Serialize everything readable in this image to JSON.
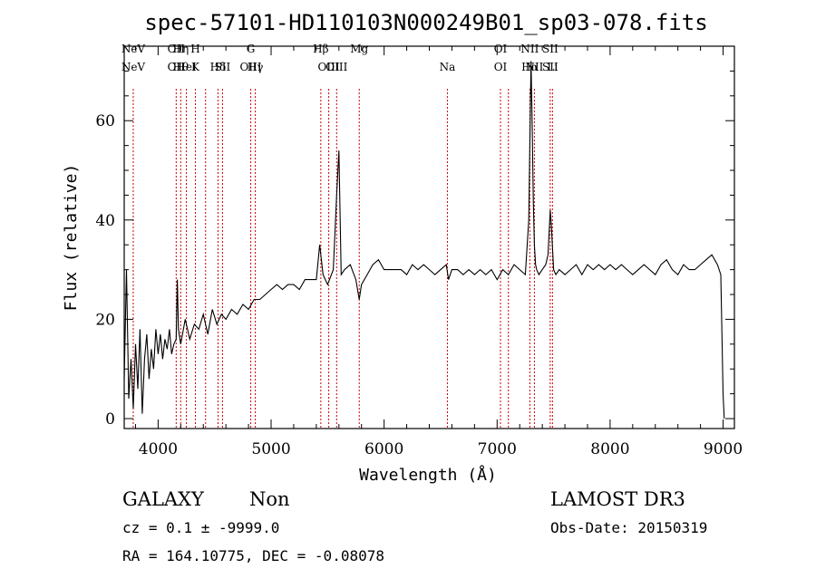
{
  "chart_data": {
    "type": "line",
    "title": "spec-57101-HD110103N000249B01_sp03-078.fits",
    "xlabel": "Wavelength (Å)",
    "ylabel": "Flux (relative)",
    "xlim": [
      3700,
      9100
    ],
    "ylim": [
      -2,
      75
    ],
    "xticks": [
      "4000",
      "5000",
      "6000",
      "7000",
      "8000",
      "9000"
    ],
    "yticks": [
      "0",
      "20",
      "40",
      "60"
    ],
    "series": [
      {
        "x": [
          3700,
          3720,
          3740,
          3760,
          3780,
          3800,
          3820,
          3840,
          3860,
          3880,
          3900,
          3920,
          3940,
          3960,
          3980,
          4000,
          4020,
          4040,
          4060,
          4080,
          4100,
          4120,
          4140,
          4160,
          4170,
          4180,
          4200,
          4240,
          4280,
          4320,
          4360,
          4400,
          4440,
          4480,
          4520,
          4560,
          4600,
          4650,
          4700,
          4750,
          4800,
          4850,
          4900,
          4950,
          5000,
          5050,
          5100,
          5150,
          5200,
          5250,
          5300,
          5350,
          5400,
          5430,
          5460,
          5500,
          5550,
          5580,
          5600,
          5620,
          5650,
          5700,
          5750,
          5780,
          5800,
          5850,
          5900,
          5950,
          6000,
          6050,
          6100,
          6150,
          6200,
          6250,
          6300,
          6350,
          6400,
          6450,
          6500,
          6550,
          6570,
          6600,
          6650,
          6700,
          6750,
          6800,
          6850,
          6900,
          6950,
          7000,
          7050,
          7100,
          7150,
          7200,
          7250,
          7280,
          7300,
          7310,
          7320,
          7330,
          7340,
          7350,
          7370,
          7400,
          7430,
          7450,
          7470,
          7480,
          7500,
          7520,
          7550,
          7600,
          7650,
          7700,
          7750,
          7800,
          7850,
          7900,
          7950,
          8000,
          8050,
          8100,
          8150,
          8200,
          8250,
          8300,
          8350,
          8400,
          8450,
          8500,
          8550,
          8600,
          8650,
          8700,
          8750,
          8800,
          8850,
          8900,
          8950,
          8980,
          9000,
          9010
        ],
        "y": [
          8,
          30,
          4,
          12,
          2,
          15,
          6,
          18,
          1,
          12,
          17,
          8,
          14,
          10,
          18,
          13,
          17,
          12,
          16,
          14,
          18,
          13,
          15,
          16,
          28,
          18,
          15,
          20,
          16,
          19,
          18,
          21,
          17,
          22,
          19,
          21,
          20,
          22,
          21,
          23,
          22,
          24,
          24,
          25,
          26,
          27,
          26,
          27,
          27,
          26,
          28,
          28,
          28,
          35,
          29,
          27,
          30,
          45,
          54,
          29,
          30,
          31,
          28,
          24,
          27,
          29,
          31,
          32,
          30,
          30,
          30,
          30,
          29,
          31,
          30,
          31,
          30,
          29,
          30,
          31,
          28,
          30,
          30,
          29,
          30,
          29,
          30,
          29,
          30,
          28,
          30,
          29,
          31,
          30,
          29,
          40,
          72,
          60,
          44,
          35,
          31,
          30,
          29,
          30,
          31,
          33,
          42,
          39,
          30,
          29,
          30,
          29,
          30,
          31,
          29,
          31,
          30,
          31,
          30,
          31,
          30,
          31,
          30,
          29,
          30,
          31,
          30,
          29,
          31,
          32,
          30,
          29,
          31,
          30,
          30,
          31,
          32,
          33,
          31,
          29,
          5,
          0
        ]
      }
    ],
    "line_markers": [
      {
        "x": 3780,
        "labels": [
          "NeV",
          "NeV"
        ]
      },
      {
        "x": 4160,
        "labels": [
          "OII",
          "OII"
        ]
      },
      {
        "x": 4200,
        "labels": [
          "Hη",
          "Hθ"
        ]
      },
      {
        "x": 4250,
        "labels": [
          "",
          "HeI"
        ]
      },
      {
        "x": 4330,
        "labels": [
          "H",
          "K"
        ]
      },
      {
        "x": 4420,
        "labels": [
          "",
          ""
        ]
      },
      {
        "x": 4530,
        "labels": [
          "",
          "Hδ"
        ]
      },
      {
        "x": 4570,
        "labels": [
          "",
          "SII"
        ]
      },
      {
        "x": 4820,
        "labels": [
          "G",
          "OIII"
        ]
      },
      {
        "x": 4860,
        "labels": [
          "",
          "Hγ"
        ]
      },
      {
        "x": 5440,
        "labels": [
          "Hβ",
          ""
        ]
      },
      {
        "x": 5510,
        "labels": [
          "",
          "OIII"
        ]
      },
      {
        "x": 5580,
        "labels": [
          "",
          "OIII"
        ]
      },
      {
        "x": 5780,
        "labels": [
          "Mg",
          ""
        ]
      },
      {
        "x": 6560,
        "labels": [
          "",
          "Na"
        ]
      },
      {
        "x": 7030,
        "labels": [
          "OI",
          "OI"
        ]
      },
      {
        "x": 7100,
        "labels": [
          "",
          ""
        ]
      },
      {
        "x": 7290,
        "labels": [
          "NII",
          "Hα"
        ]
      },
      {
        "x": 7330,
        "labels": [
          "",
          "NII"
        ]
      },
      {
        "x": 7470,
        "labels": [
          "SII",
          "SII"
        ]
      },
      {
        "x": 7490,
        "labels": [
          "",
          "Li"
        ]
      }
    ],
    "grid": false,
    "colors": {
      "spectrum": "#000000",
      "marker": "#cc0000",
      "axis": "#000000"
    }
  },
  "info": {
    "classification": "GALAXY",
    "subclass": "Non",
    "survey": "LAMOST DR3",
    "cz": "cz = 0.1 ± -9999.0",
    "obs_date": "Obs-Date: 20150319",
    "radec": "RA = 164.10775, DEC =  -0.08078"
  }
}
